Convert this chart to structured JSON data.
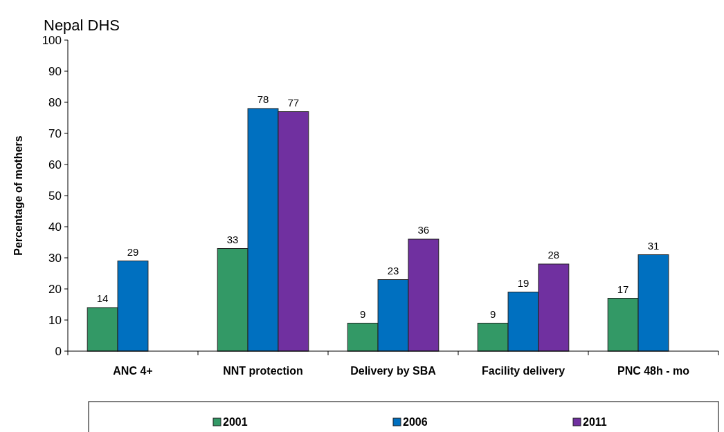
{
  "chart_data": {
    "type": "bar",
    "title": "Nepal DHS",
    "ylabel": "Percentage of mothers",
    "categories": [
      "ANC 4+",
      "NNT protection",
      "Delivery by SBA",
      "Facility delivery",
      "PNC 48h - mo"
    ],
    "series": [
      {
        "name": "2001",
        "color": "#339966",
        "values": [
          14,
          33,
          9,
          9,
          17
        ]
      },
      {
        "name": "2006",
        "color": "#0070c0",
        "values": [
          29,
          78,
          23,
          19,
          31
        ]
      },
      {
        "name": "2011",
        "color": "#7030a0",
        "values": [
          null,
          77,
          36,
          28,
          null
        ]
      }
    ],
    "ylim": [
      0,
      100
    ],
    "yticks": [
      0,
      10,
      20,
      30,
      40,
      50,
      60,
      70,
      80,
      90,
      100
    ],
    "legend": "bottom",
    "data_labels": true
  }
}
